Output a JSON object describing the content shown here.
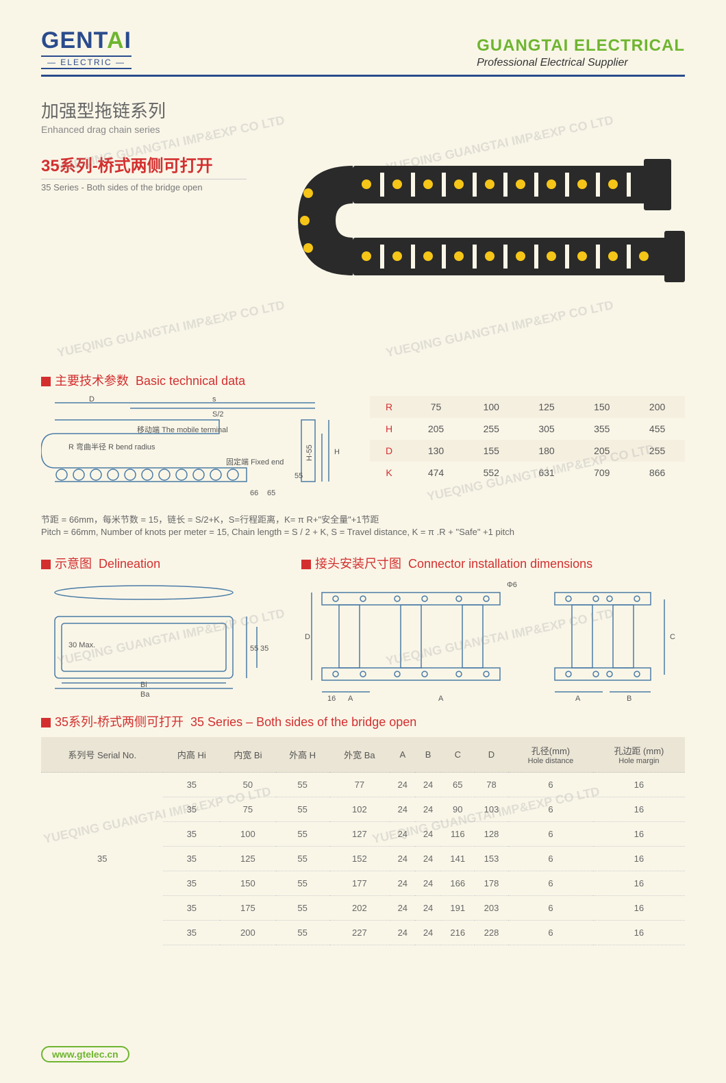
{
  "header": {
    "logo_main": "GENTAI",
    "logo_sub": "— ELECTRIC —",
    "company": "GUANGTAI ELECTRICAL",
    "tagline": "Professional Electrical Supplier"
  },
  "series": {
    "heading_cn": "加强型拖链系列",
    "heading_en": "Enhanced drag chain series",
    "product_cn": "35系列-桥式两侧可打开",
    "product_en": "35 Series - Both sides of the bridge open"
  },
  "sections": {
    "tech_cn": "主要技术参数",
    "tech_en": "Basic technical data",
    "delin_cn": "示意图",
    "delin_en": "Delineation",
    "conn_cn": "接头安装尺寸图",
    "conn_en": "Connector installation dimensions",
    "spec_cn": "35系列-桥式两侧可打开",
    "spec_en": "35 Series – Both sides of the bridge open"
  },
  "tech_labels": {
    "mobile_cn": "移动端",
    "mobile_en": "The mobile terminal",
    "bend_cn": "R 弯曲半径",
    "bend_en": "R bend radius",
    "fixed_cn": "固定端",
    "fixed_en": "Fixed end",
    "d": "D",
    "s": "s",
    "s2": "S/2",
    "h": "H",
    "h55": "H-55",
    "h55b": "55",
    "p66": "66",
    "p65": "65",
    "max30": "30\nMax.",
    "bi": "Bi",
    "ba": "Ba",
    "d35": "35",
    "d55": "55",
    "c16": "16",
    "ca": "A",
    "cd": "D",
    "cb": "B",
    "cc": "C",
    "phi6": "Φ6"
  },
  "tech_table": {
    "rows": [
      {
        "k": "R",
        "v": [
          "75",
          "100",
          "125",
          "150",
          "200"
        ]
      },
      {
        "k": "H",
        "v": [
          "205",
          "255",
          "305",
          "355",
          "455"
        ]
      },
      {
        "k": "D",
        "v": [
          "130",
          "155",
          "180",
          "205",
          "255"
        ]
      },
      {
        "k": "K",
        "v": [
          "474",
          "552",
          "631",
          "709",
          "866"
        ]
      }
    ]
  },
  "formula": {
    "cn": "节距 = 66mm，每米节数 = 15，链长 = S/2+K，S=行程距离，K= π R+\"安全量\"+1节距",
    "en": "Pitch = 66mm, Number of knots per meter = 15, Chain length = S / 2 + K, S = Travel distance, K = π .R + \"Safe\" +1 pitch"
  },
  "spec": {
    "headers": [
      "系列号 Serial No.",
      "内高 Hi",
      "内宽 Bi",
      "外高 H",
      "外宽 Ba",
      "A",
      "B",
      "C",
      "D",
      "孔径(mm)\nHole distance",
      "孔边距 (mm)\nHole margin"
    ],
    "serial": "35",
    "rows": [
      [
        "35",
        "50",
        "55",
        "77",
        "24",
        "24",
        "65",
        "78",
        "6",
        "16"
      ],
      [
        "35",
        "75",
        "55",
        "102",
        "24",
        "24",
        "90",
        "103",
        "6",
        "16"
      ],
      [
        "35",
        "100",
        "55",
        "127",
        "24",
        "24",
        "116",
        "128",
        "6",
        "16"
      ],
      [
        "35",
        "125",
        "55",
        "152",
        "24",
        "24",
        "141",
        "153",
        "6",
        "16"
      ],
      [
        "35",
        "150",
        "55",
        "177",
        "24",
        "24",
        "166",
        "178",
        "6",
        "16"
      ],
      [
        "35",
        "175",
        "55",
        "202",
        "24",
        "24",
        "191",
        "203",
        "6",
        "16"
      ],
      [
        "35",
        "200",
        "55",
        "227",
        "24",
        "24",
        "216",
        "228",
        "6",
        "16"
      ]
    ]
  },
  "footer": {
    "url": "www.gtelec.cn"
  },
  "watermark": "YUEQING GUANGTAI IMP&EXP CO LTD",
  "colors": {
    "bg": "#f9f6e8",
    "navy": "#2a4b8d",
    "green": "#6eb52f",
    "red": "#d32f2f",
    "chain_body": "#2a2a2a",
    "chain_dot": "#f5c518"
  }
}
